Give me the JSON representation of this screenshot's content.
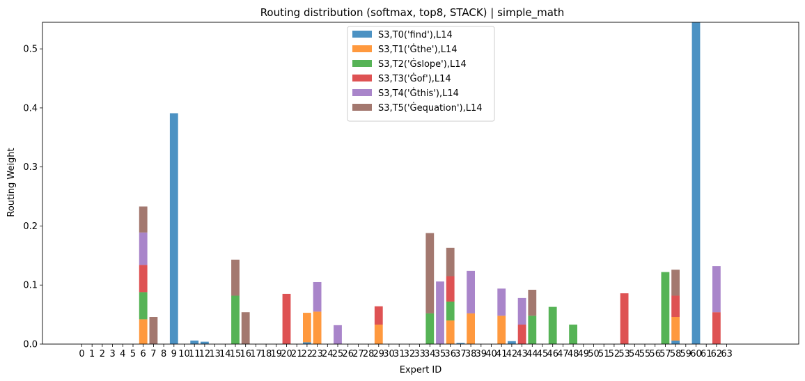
{
  "chart_data": {
    "type": "bar",
    "stacked": true,
    "title": "Routing distribution (softmax, top8, STACK) | simple_math",
    "xlabel": "Expert ID",
    "ylabel": "Routing Weight",
    "ylim": [
      0,
      0.545
    ],
    "yticks": [
      0.0,
      0.1,
      0.2,
      0.3,
      0.4,
      0.5
    ],
    "ytick_labels": [
      "0.0",
      "0.1",
      "0.2",
      "0.3",
      "0.4",
      "0.5"
    ],
    "categories": [
      "0",
      "1",
      "2",
      "3",
      "4",
      "5",
      "6",
      "7",
      "8",
      "9",
      "10",
      "11",
      "12",
      "13",
      "14",
      "15",
      "16",
      "17",
      "18",
      "19",
      "20",
      "21",
      "22",
      "23",
      "24",
      "25",
      "26",
      "27",
      "28",
      "29",
      "30",
      "31",
      "32",
      "33",
      "34",
      "35",
      "36",
      "37",
      "38",
      "39",
      "40",
      "41",
      "42",
      "43",
      "44",
      "45",
      "46",
      "47",
      "48",
      "49",
      "50",
      "51",
      "52",
      "53",
      "54",
      "55",
      "56",
      "57",
      "58",
      "59",
      "60",
      "61",
      "62",
      "63"
    ],
    "grid": false,
    "legend_position": "top-center",
    "series": [
      {
        "name": "S3,T0('find'),L14",
        "color": "#1f77b4",
        "values": {
          "9": 0.391,
          "11": 0.006,
          "12": 0.004,
          "22": 0.003,
          "37": 0.002,
          "42": 0.005,
          "58": 0.006,
          "60": 0.56
        }
      },
      {
        "name": "S3,T1('Ġthe'),L14",
        "color": "#ff7f0e",
        "values": {
          "6": 0.042,
          "22": 0.05,
          "23": 0.055,
          "29": 0.033,
          "36": 0.04,
          "38": 0.052,
          "41": 0.048,
          "58": 0.04
        }
      },
      {
        "name": "S3,T2('Ġslope'),L14",
        "color": "#2ca02c",
        "values": {
          "6": 0.046,
          "15": 0.082,
          "34": 0.052,
          "36": 0.032,
          "44": 0.048,
          "46": 0.063,
          "48": 0.033,
          "57": 0.122
        }
      },
      {
        "name": "S3,T3('Ġof'),L14",
        "color": "#d62728",
        "values": {
          "6": 0.046,
          "20": 0.085,
          "29": 0.031,
          "36": 0.043,
          "43": 0.033,
          "53": 0.086,
          "58": 0.036,
          "62": 0.054
        }
      },
      {
        "name": "S3,T4('Ġthis'),L14",
        "color": "#9467bd",
        "values": {
          "6": 0.055,
          "23": 0.05,
          "25": 0.032,
          "35": 0.106,
          "38": 0.072,
          "41": 0.046,
          "43": 0.045,
          "62": 0.078
        }
      },
      {
        "name": "S3,T5('Ġequation'),L14",
        "color": "#8c564b",
        "values": {
          "6": 0.044,
          "7": 0.046,
          "15": 0.061,
          "16": 0.054,
          "34": 0.136,
          "36": 0.048,
          "44": 0.044,
          "58": 0.044
        }
      }
    ]
  }
}
